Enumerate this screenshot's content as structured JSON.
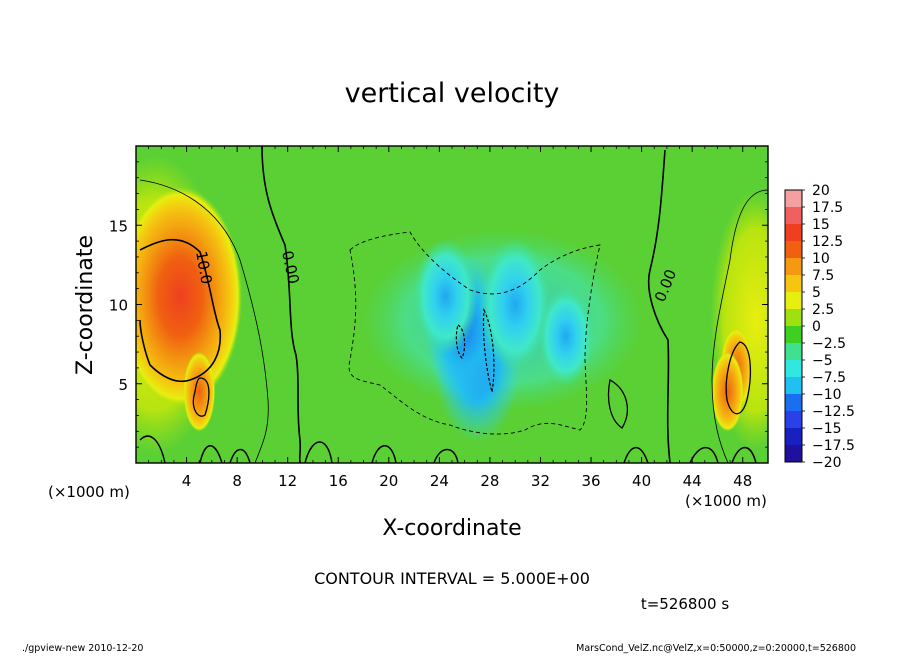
{
  "chart_data": {
    "type": "heatmap",
    "title": "vertical velocity",
    "xlabel": "X-coordinate",
    "ylabel": "Z-coordinate",
    "x_unit_label": "(×1000 m)",
    "y_unit_label": "(×1000 m)",
    "xlim": [
      0,
      50
    ],
    "ylim": [
      0,
      20
    ],
    "x_ticks": [
      4,
      8,
      12,
      16,
      20,
      24,
      28,
      32,
      36,
      40,
      44,
      48
    ],
    "y_ticks": [
      5,
      10,
      15
    ],
    "contour_interval_text": "CONTOUR INTERVAL = 5.000E+00",
    "contour_labels": [
      "10.0",
      "0.00",
      "0.00"
    ],
    "time_label": "t=526800 s",
    "colorbar": {
      "levels": [
        "20",
        "17.5",
        "15",
        "12.5",
        "10",
        "7.5",
        "5",
        "2.5",
        "0",
        "−2.5",
        "−5",
        "−7.5",
        "−10",
        "−12.5",
        "−15",
        "−17.5",
        "−20"
      ],
      "colors": [
        "#f5a0a0",
        "#f06060",
        "#ee4020",
        "#f06010",
        "#f39a10",
        "#f5c510",
        "#e8ee10",
        "#9ee010",
        "#3ed020",
        "#40e090",
        "#30e8e0",
        "#20c0f0",
        "#1a6ff0",
        "#2a40e8",
        "#1820c0",
        "#2010a0",
        "#6a10c0"
      ]
    },
    "features": [
      {
        "kind": "updraft",
        "x": 3.5,
        "z": 10.5,
        "peak": 14
      },
      {
        "kind": "updraft",
        "x": 5.0,
        "z": 4.5,
        "peak": 10
      },
      {
        "kind": "updraft",
        "x": 47.5,
        "z": 6.0,
        "peak": 11
      },
      {
        "kind": "updraft",
        "x": 46.8,
        "z": 4.5,
        "peak": 10
      },
      {
        "kind": "downdraft",
        "x": 27.0,
        "z": 6.5,
        "peak": -8
      },
      {
        "kind": "downdraft",
        "x": 26.0,
        "z": 8.5,
        "peak": -7
      },
      {
        "kind": "downdraft",
        "x": 30.0,
        "z": 10.0,
        "peak": -6
      },
      {
        "kind": "downdraft",
        "x": 24.5,
        "z": 10.5,
        "peak": -5
      },
      {
        "kind": "downdraft",
        "x": 34.0,
        "z": 8.0,
        "peak": -4
      }
    ]
  },
  "footer": {
    "left": "./gpview-new   2010-12-20",
    "right": "MarsCond_VelZ.nc@VelZ,x=0:50000,z=0:20000,t=526800"
  }
}
